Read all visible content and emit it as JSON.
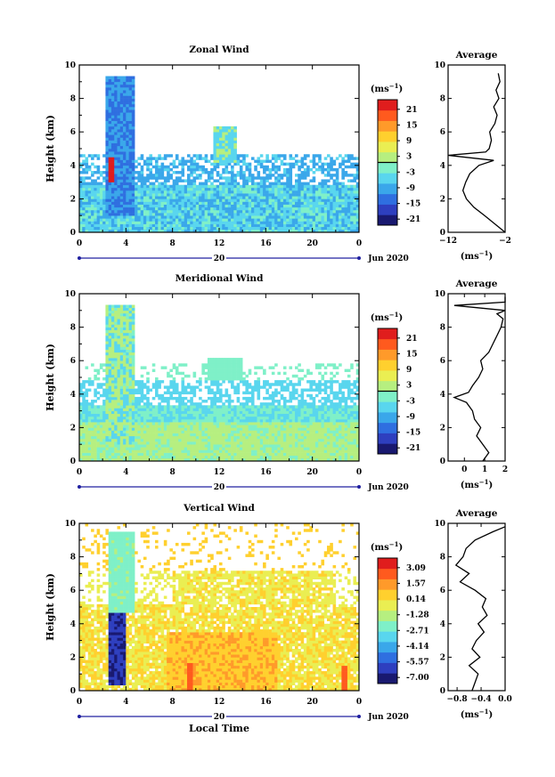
{
  "colors": {
    "palette": [
      "#191970",
      "#2e3fbf",
      "#2f6fe0",
      "#3aa7ea",
      "#59d6ee",
      "#7ff0c8",
      "#b6ef80",
      "#eaee52",
      "#ffd02e",
      "#ff9a2a",
      "#ff5a1e",
      "#e01d1d"
    ],
    "axis": "#000000",
    "time_bar": "#2020a0"
  },
  "x_axis": {
    "ticks": [
      "0",
      "4",
      "8",
      "12",
      "16",
      "20",
      "0"
    ],
    "date_label": "20",
    "month_label": "Jun 2020",
    "label": "Local Time"
  },
  "y_axis": {
    "label": "Height (km)",
    "ticks": [
      "0",
      "2",
      "4",
      "6",
      "8",
      "10"
    ]
  },
  "chart_data": [
    {
      "type": "heatmap",
      "title": "Zonal Wind",
      "ylabel": "Height (km)",
      "xlabel": "",
      "ylim": [
        0,
        10
      ],
      "colorbar": {
        "unit_base": "(ms",
        "unit_exp": "−1",
        "unit_close": ")",
        "labels": [
          "21",
          "15",
          "9",
          "3",
          "-3",
          "-9",
          "-15",
          "-21"
        ],
        "range": [
          -24,
          24
        ],
        "contour_at": 0
      },
      "profile": {
        "title": "Average",
        "xlabel_base": "(ms",
        "xlabel_exp": "−1",
        "xlabel_close": ")",
        "xticks": [
          "−12",
          "−2"
        ],
        "xlim": [
          -12,
          -2
        ],
        "height": [
          0,
          0.5,
          1.0,
          1.5,
          2.0,
          2.5,
          3.0,
          3.5,
          4.0,
          4.3,
          4.6,
          4.8,
          5.0,
          5.5,
          6.0,
          6.5,
          7.0,
          7.5,
          8.0,
          8.5,
          9.0,
          9.5
        ],
        "value": [
          -2.0,
          -3.8,
          -5.6,
          -7.5,
          -8.8,
          -9.4,
          -8.9,
          -8.2,
          -6.6,
          -4.0,
          -12.0,
          -5.4,
          -4.8,
          -4.4,
          -4.7,
          -3.8,
          -3.4,
          -4.0,
          -3.1,
          -3.6,
          -2.9,
          -3.2
        ]
      }
    },
    {
      "type": "heatmap",
      "title": "Meridional Wind",
      "ylabel": "Height (km)",
      "xlabel": "",
      "ylim": [
        0,
        10
      ],
      "colorbar": {
        "unit_base": "(ms",
        "unit_exp": "−1",
        "unit_close": ")",
        "labels": [
          "21",
          "15",
          "9",
          "3",
          "-3",
          "-9",
          "-15",
          "-21"
        ],
        "range": [
          -24,
          24
        ],
        "contour_at": 0
      },
      "profile": {
        "title": "Average",
        "xlabel_base": "(ms",
        "xlabel_exp": "−1",
        "xlabel_close": ")",
        "xticks": [
          "0",
          "1",
          "2"
        ],
        "xlim": [
          -0.8,
          2.0
        ],
        "height": [
          0,
          0.5,
          1.0,
          1.5,
          2.0,
          2.5,
          3.0,
          3.5,
          3.8,
          4.1,
          4.5,
          5.0,
          5.5,
          6.0,
          6.5,
          7.0,
          7.5,
          8.0,
          8.5,
          8.8,
          9.0,
          9.3,
          9.5,
          9.8
        ],
        "value": [
          0.9,
          1.2,
          0.9,
          0.6,
          0.8,
          0.5,
          0.4,
          0.1,
          -0.5,
          0.2,
          0.4,
          0.7,
          0.9,
          0.8,
          1.2,
          1.4,
          1.6,
          1.8,
          1.9,
          1.6,
          2.0,
          -0.5,
          2.0,
          2.0
        ]
      }
    },
    {
      "type": "heatmap",
      "title": "Vertical Wind",
      "ylabel": "Height (km)",
      "xlabel": "Local Time",
      "ylim": [
        0,
        10
      ],
      "colorbar": {
        "unit_base": "(ms",
        "unit_exp": "−1",
        "unit_close": ")",
        "labels": [
          "3.09",
          "1.57",
          "0.14",
          "-1.28",
          "-2.71",
          "-4.14",
          "-5.57",
          "-7.00"
        ],
        "range": [
          -7.7,
          3.8
        ],
        "contour_at": null
      },
      "profile": {
        "title": "Average",
        "xlabel_base": "(ms",
        "xlabel_exp": "−1",
        "xlabel_close": ")",
        "xticks": [
          "−0.8",
          "−0.4",
          "0.0"
        ],
        "xlim": [
          -0.95,
          0.0
        ],
        "height": [
          0,
          0.5,
          1.0,
          1.5,
          2.0,
          2.5,
          3.0,
          3.5,
          4.0,
          4.5,
          5.0,
          5.5,
          6.0,
          6.5,
          7.0,
          7.5,
          8.0,
          8.5,
          9.0,
          9.5,
          9.8
        ],
        "value": [
          -0.55,
          -0.5,
          -0.45,
          -0.6,
          -0.42,
          -0.55,
          -0.48,
          -0.35,
          -0.45,
          -0.3,
          -0.38,
          -0.32,
          -0.5,
          -0.75,
          -0.6,
          -0.82,
          -0.7,
          -0.65,
          -0.5,
          -0.2,
          0.0
        ]
      }
    }
  ]
}
